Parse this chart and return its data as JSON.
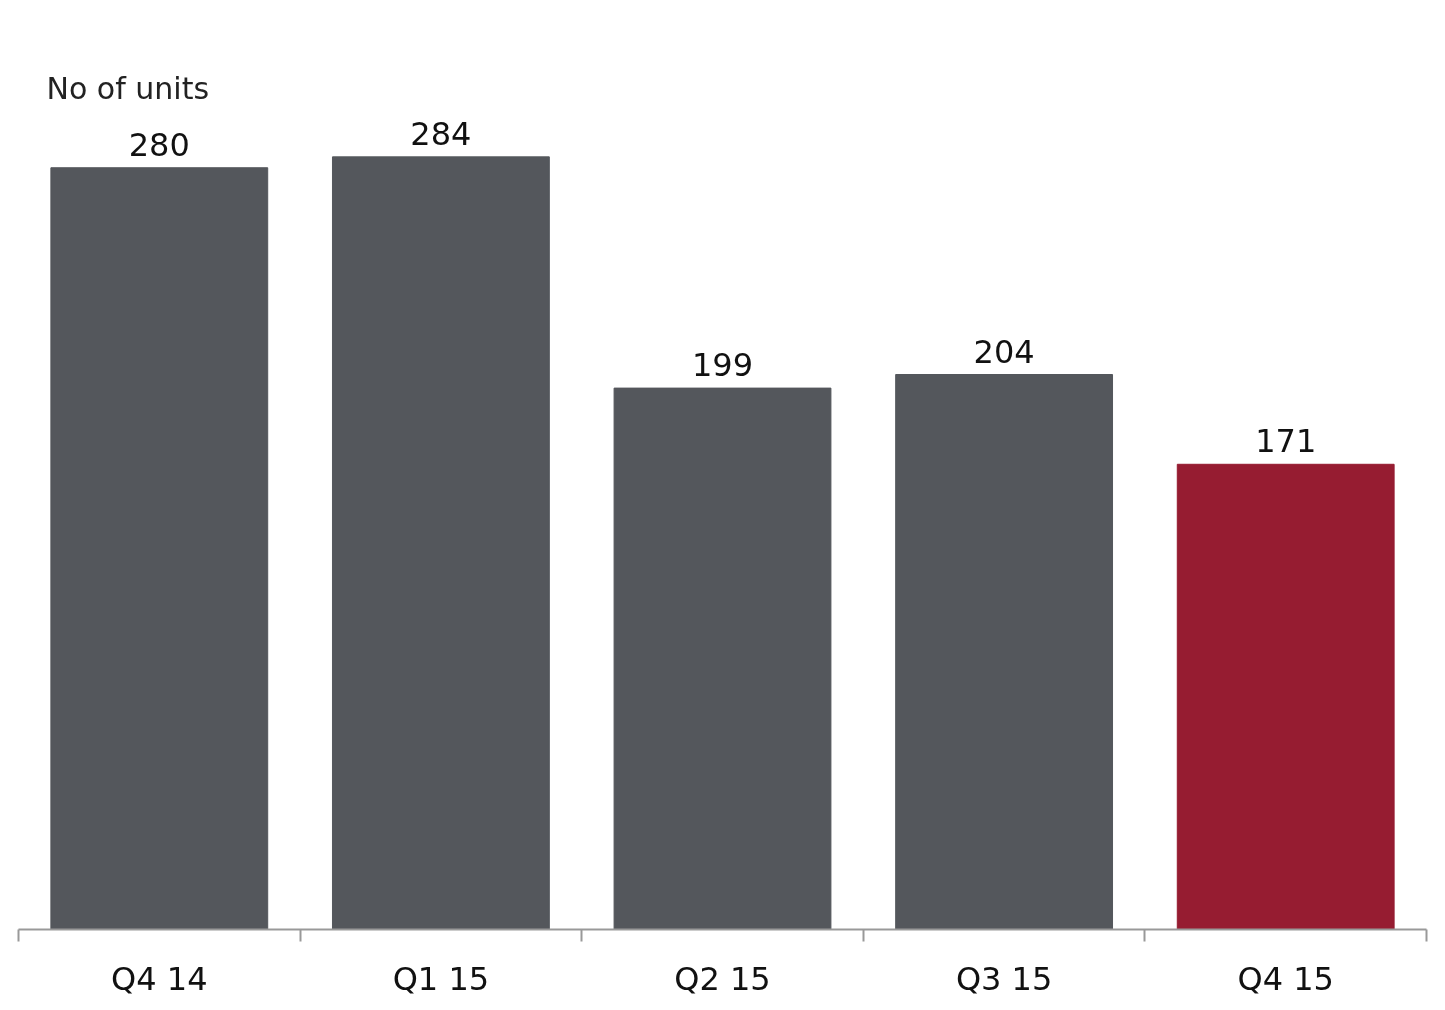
{
  "chart_data": {
    "type": "bar",
    "title": "No of units",
    "categories": [
      "Q4 14",
      "Q1 15",
      "Q2 15",
      "Q3 15",
      "Q4 15"
    ],
    "values": [
      280,
      284,
      199,
      204,
      171
    ],
    "colors": [
      "#54575c",
      "#54575c",
      "#54575c",
      "#54575c",
      "#961c31"
    ],
    "data_labels": true
  }
}
